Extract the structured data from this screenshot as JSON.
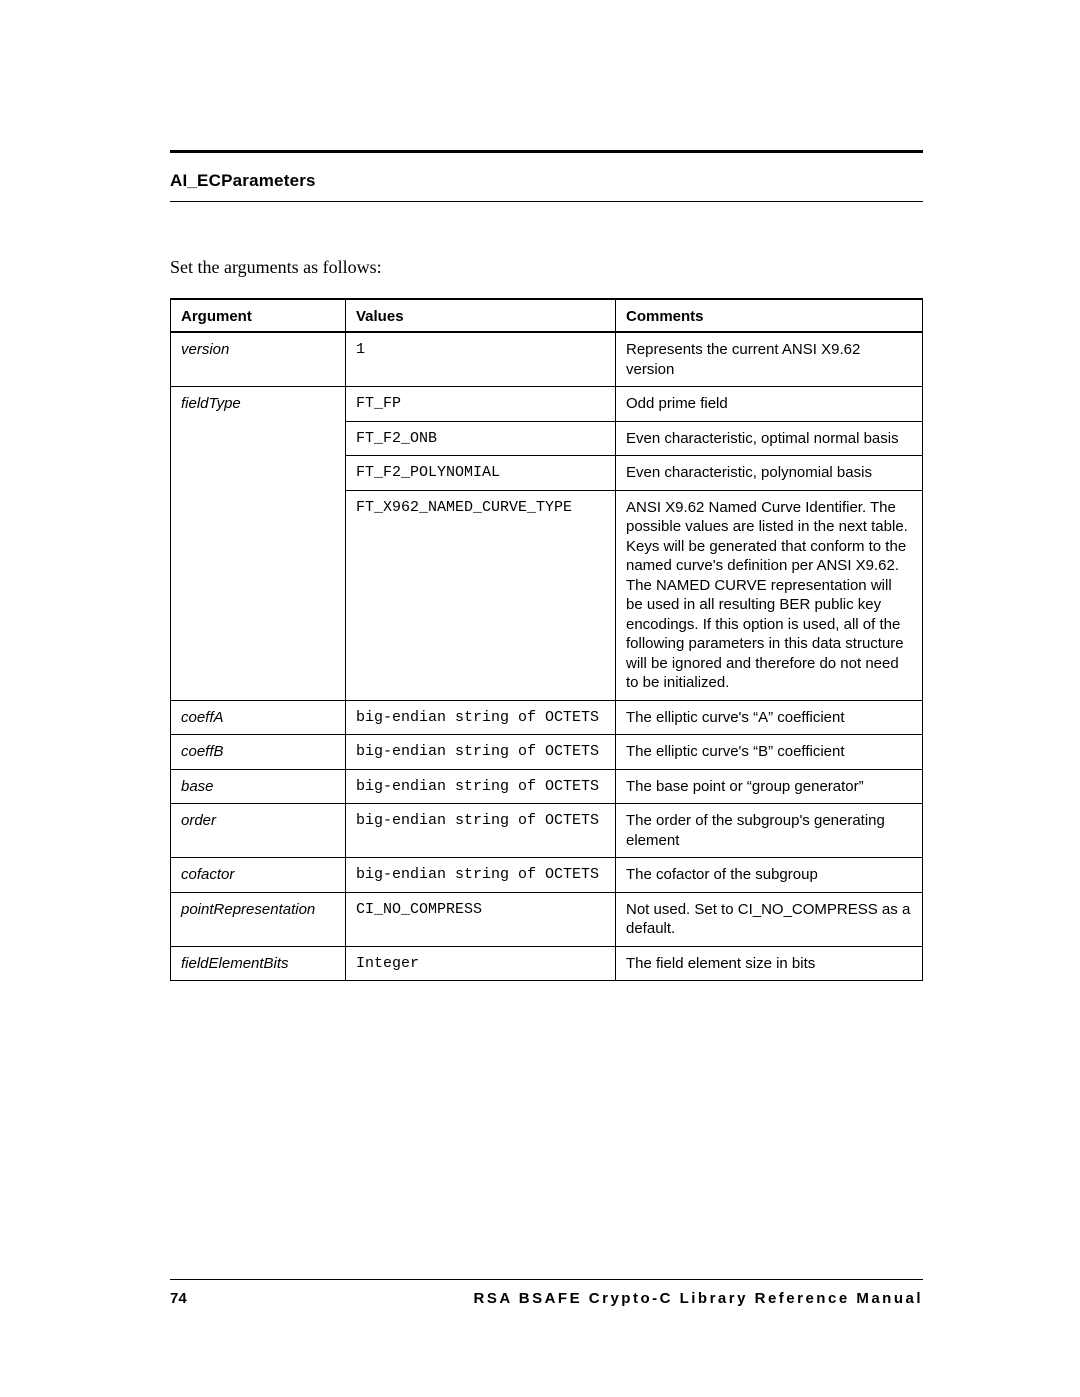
{
  "header": {
    "title": "AI_ECParameters"
  },
  "intro": "Set the arguments as follows:",
  "table": {
    "headers": {
      "c1": "Argument",
      "c2": "Values",
      "c3": "Comments"
    },
    "rows": {
      "version": {
        "arg": "version",
        "value": "1",
        "comment": "Represents the current ANSI X9.62 version"
      },
      "fieldType": {
        "arg": "fieldType",
        "r0": {
          "value": "FT_FP",
          "comment": "Odd prime field"
        },
        "r1": {
          "value": "FT_F2_ONB",
          "comment": "Even characteristic, optimal normal basis"
        },
        "r2": {
          "value": "FT_F2_POLYNOMIAL",
          "comment": "Even characteristic, polynomial basis"
        },
        "r3": {
          "value": "FT_X962_NAMED_CURVE_TYPE",
          "comment": "ANSI X9.62 Named Curve Identifier. The possible values are listed in the next table. Keys will be generated that conform to the named curve's definition per ANSI X9.62. The NAMED CURVE representation will be used in all resulting BER public key encodings. If this option is used, all of the following parameters in this data structure will be ignored and therefore do not need to be initialized."
        }
      },
      "coeffA": {
        "arg": "coeffA",
        "value": "big-endian string of OCTETS",
        "comment": "The elliptic curve's “A” coefficient"
      },
      "coeffB": {
        "arg": "coeffB",
        "value": "big-endian string of OCTETS",
        "comment": "The elliptic curve's “B” coefficient"
      },
      "base": {
        "arg": "base",
        "value": "big-endian string of OCTETS",
        "comment": "The base point or “group generator”"
      },
      "order": {
        "arg": "order",
        "value": "big-endian string of OCTETS",
        "comment": "The order of the subgroup's generating element"
      },
      "cofactor": {
        "arg": "cofactor",
        "value": "big-endian string of OCTETS",
        "comment": "The cofactor of the subgroup"
      },
      "pointRepresentation": {
        "arg": "pointRepresentation",
        "value": "CI_NO_COMPRESS",
        "comment": "Not used. Set to CI_NO_COMPRESS as a default."
      },
      "fieldElementBits": {
        "arg": "fieldElementBits",
        "value": "Integer",
        "comment": "The field element size in bits"
      }
    }
  },
  "footer": {
    "page": "74",
    "title": "RSA BSAFE Crypto-C Library Reference Manual"
  }
}
